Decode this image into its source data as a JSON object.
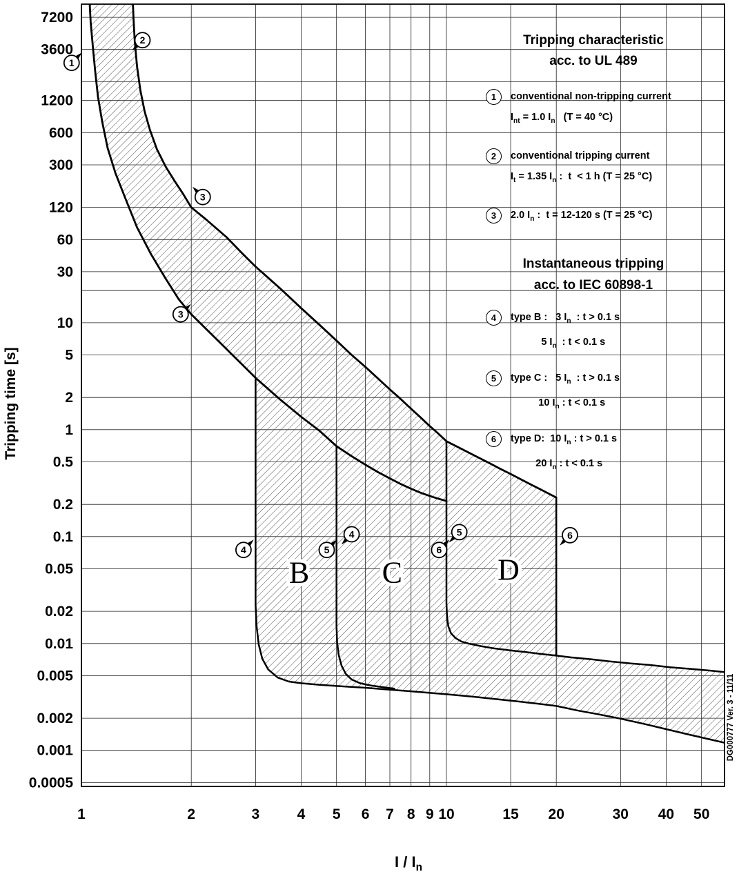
{
  "footer": {
    "doc_ref": "DG000777 Ver. 3 - 11/11"
  },
  "legend": {
    "title1": [
      "Tripping characteristic",
      "acc. to UL 489"
    ],
    "items1": [
      {
        "num": "1",
        "lines": [
          "conventional non-tripping current",
          "I~nt~ = 1.0 I~n~   (T = 40 °C)"
        ]
      },
      {
        "num": "2",
        "lines": [
          "conventional tripping current",
          "I~t~ = 1.35 I~n~ :  t  < 1 h (T = 25 °C)"
        ]
      },
      {
        "num": "3",
        "lines": [
          "2.0 I~n~ :  t = 12-120 s (T = 25 °C)"
        ]
      }
    ],
    "title2": [
      "Instantaneous tripping",
      "acc. to IEC 60898-1"
    ],
    "items2": [
      {
        "num": "4",
        "lines": [
          "type B :   3 I~n~  : t > 0.1 s",
          "           5 I~n~  : t < 0.1 s"
        ]
      },
      {
        "num": "5",
        "lines": [
          "type C :   5 I~n~  : t > 0.1 s",
          "          10 I~n~ : t < 0.1 s"
        ]
      },
      {
        "num": "6",
        "lines": [
          "type D:  10 I~n~ : t > 0.1 s",
          "         20 I~n~ : t < 0.1 s"
        ]
      }
    ]
  },
  "chart_data": {
    "type": "line",
    "title": "Tripping characteristic acc. to UL 489 / Instantaneous tripping acc. to IEC 60898-1",
    "xlabel": "I / I~n~",
    "ylabel": "Tripping time [s]",
    "log_x": true,
    "log_y": true,
    "grid": true,
    "xlim": [
      1,
      57.8
    ],
    "ylim": [
      0.00046,
      9560
    ],
    "x_ticks": [
      1,
      2,
      3,
      4,
      5,
      6,
      7,
      8,
      9,
      10,
      15,
      20,
      30,
      40,
      50
    ],
    "y_ticks": [
      "7200",
      "3600",
      "1200",
      "600",
      "300",
      "120",
      "60",
      "30",
      "10",
      "5",
      "2",
      "1",
      "0.5",
      "0.2",
      "0.1",
      "0.05",
      "0.02",
      "0.01",
      "0.005",
      "0.002",
      "0.001",
      "0.0005"
    ],
    "y_grid_extra": [
      1800,
      20
    ],
    "boundaries": {
      "lower_band": [
        [
          1.05,
          12000
        ],
        [
          1.06,
          6500
        ],
        [
          1.075,
          3800
        ],
        [
          1.09,
          2300
        ],
        [
          1.11,
          1300
        ],
        [
          1.14,
          760
        ],
        [
          1.18,
          430
        ],
        [
          1.24,
          250
        ],
        [
          1.32,
          145
        ],
        [
          1.42,
          78
        ],
        [
          1.55,
          44
        ],
        [
          1.7,
          26
        ],
        [
          1.85,
          16.5
        ],
        [
          2.0,
          12
        ],
        [
          2.2,
          8.7
        ],
        [
          2.5,
          5.65
        ],
        [
          2.75,
          4.1
        ],
        [
          3.0,
          3.05
        ],
        [
          3.5,
          1.92
        ],
        [
          4.0,
          1.32
        ],
        [
          4.5,
          0.97
        ],
        [
          5.0,
          0.7
        ],
        [
          5.5,
          0.565
        ],
        [
          6.0,
          0.47
        ],
        [
          6.5,
          0.4
        ],
        [
          7.0,
          0.35
        ],
        [
          7.5,
          0.31
        ],
        [
          8.0,
          0.28
        ],
        [
          8.5,
          0.257
        ],
        [
          9.0,
          0.24
        ],
        [
          9.5,
          0.226
        ],
        [
          10.0,
          0.215
        ]
      ],
      "upper_thermal": [
        [
          1.38,
          12000
        ],
        [
          1.39,
          6800
        ],
        [
          1.4,
          4300
        ],
        [
          1.42,
          2500
        ],
        [
          1.45,
          1500
        ],
        [
          1.49,
          950
        ],
        [
          1.54,
          640
        ],
        [
          1.61,
          420
        ],
        [
          1.7,
          290
        ],
        [
          1.8,
          212
        ],
        [
          1.9,
          160
        ],
        [
          2.0,
          120
        ],
        [
          2.2,
          92
        ],
        [
          2.5,
          63
        ],
        [
          2.75,
          45
        ],
        [
          3.0,
          33.5
        ],
        [
          3.5,
          21
        ],
        [
          4.0,
          13.7
        ],
        [
          4.5,
          9.5
        ],
        [
          5.0,
          6.8
        ],
        [
          5.5,
          5.0
        ],
        [
          6.0,
          3.86
        ],
        [
          6.5,
          3.0
        ],
        [
          7.0,
          2.38
        ],
        [
          7.5,
          1.93
        ],
        [
          8.0,
          1.57
        ],
        [
          8.5,
          1.3
        ],
        [
          9.0,
          1.08
        ],
        [
          9.5,
          0.92
        ],
        [
          10.0,
          0.78
        ],
        [
          11,
          0.66
        ],
        [
          12,
          0.567
        ],
        [
          13,
          0.494
        ],
        [
          14,
          0.433
        ],
        [
          15,
          0.385
        ],
        [
          16,
          0.343
        ],
        [
          17,
          0.308
        ],
        [
          18,
          0.279
        ],
        [
          19,
          0.254
        ],
        [
          20,
          0.232
        ]
      ],
      "type_b_boundary": [
        [
          3.0,
          3.05
        ],
        [
          3.0,
          0.023
        ],
        [
          3.02,
          0.0145
        ],
        [
          3.06,
          0.0098
        ],
        [
          3.13,
          0.0072
        ],
        [
          3.25,
          0.0057
        ],
        [
          3.45,
          0.0048
        ],
        [
          3.7,
          0.0044
        ],
        [
          4.0,
          0.00425
        ],
        [
          4.5,
          0.0041
        ],
        [
          5.0,
          0.004
        ],
        [
          5.5,
          0.00392
        ],
        [
          6.0,
          0.00385
        ],
        [
          7.0,
          0.0037
        ],
        [
          8.0,
          0.00357
        ],
        [
          9.0,
          0.00345
        ],
        [
          10.0,
          0.00335
        ],
        [
          11.0,
          0.00325
        ],
        [
          12.0,
          0.00316
        ],
        [
          14.0,
          0.00299
        ],
        [
          16.0,
          0.00285
        ],
        [
          18.0,
          0.00272
        ],
        [
          20.0,
          0.0026
        ],
        [
          23.0,
          0.00235
        ],
        [
          26.0,
          0.00218
        ],
        [
          30.0,
          0.00198
        ],
        [
          35.0,
          0.00176
        ],
        [
          40.0,
          0.00158
        ],
        [
          46.0,
          0.00141
        ],
        [
          52.0,
          0.00128
        ],
        [
          57.8,
          0.00118
        ]
      ],
      "type_c_boundary": [
        [
          5.0,
          0.7
        ],
        [
          5.0,
          0.0145
        ],
        [
          5.02,
          0.0102
        ],
        [
          5.07,
          0.0078
        ],
        [
          5.16,
          0.0062
        ],
        [
          5.3,
          0.0052
        ],
        [
          5.5,
          0.0046
        ],
        [
          5.8,
          0.00425
        ],
        [
          6.2,
          0.00405
        ],
        [
          6.7,
          0.0039
        ],
        [
          7.2,
          0.00378
        ]
      ],
      "type_d_boundary": [
        [
          10.0,
          0.78
        ],
        [
          10.0,
          0.024
        ],
        [
          10.04,
          0.0178
        ],
        [
          10.12,
          0.0145
        ],
        [
          10.3,
          0.0124
        ],
        [
          10.6,
          0.0112
        ],
        [
          11.0,
          0.0104
        ],
        [
          11.6,
          0.0099
        ],
        [
          12.5,
          0.0094
        ],
        [
          13.5,
          0.009
        ],
        [
          15.0,
          0.0086
        ],
        [
          16.5,
          0.0083
        ],
        [
          18.0,
          0.008
        ],
        [
          20.0,
          0.0077
        ],
        [
          22.0,
          0.0074
        ],
        [
          25.0,
          0.0071
        ],
        [
          28.0,
          0.0068
        ],
        [
          32.0,
          0.0065
        ],
        [
          36.0,
          0.0063
        ],
        [
          41.0,
          0.006
        ],
        [
          46.0,
          0.0058
        ],
        [
          52.0,
          0.0056
        ],
        [
          57.8,
          0.0054
        ]
      ],
      "type_d_right_edge": [
        [
          20,
          0.232
        ],
        [
          20,
          0.0077
        ]
      ]
    },
    "markers": [
      {
        "n": "1",
        "x": 0.94,
        "t": 2700,
        "dir": "ne"
      },
      {
        "n": "2",
        "x": 1.47,
        "t": 4400,
        "dir": "sw"
      },
      {
        "n": "3",
        "x": 2.15,
        "t": 150,
        "dir": "nw"
      },
      {
        "n": "3",
        "x": 1.87,
        "t": 12,
        "dir": "ne"
      },
      {
        "n": "4",
        "x": 2.78,
        "t": 0.075,
        "dir": "ne"
      },
      {
        "n": "4",
        "x": 5.5,
        "t": 0.105,
        "dir": "sw"
      },
      {
        "n": "5",
        "x": 4.7,
        "t": 0.075,
        "dir": "ne"
      },
      {
        "n": "5",
        "x": 10.85,
        "t": 0.11,
        "dir": "sw"
      },
      {
        "n": "6",
        "x": 9.55,
        "t": 0.075,
        "dir": "ne"
      },
      {
        "n": "6",
        "x": 21.8,
        "t": 0.103,
        "dir": "sw"
      }
    ],
    "region_labels": [
      {
        "text": "B",
        "x": 3.95,
        "t": 0.047
      },
      {
        "text": "C",
        "x": 7.1,
        "t": 0.047
      },
      {
        "text": "D",
        "x": 14.8,
        "t": 0.05
      }
    ]
  }
}
